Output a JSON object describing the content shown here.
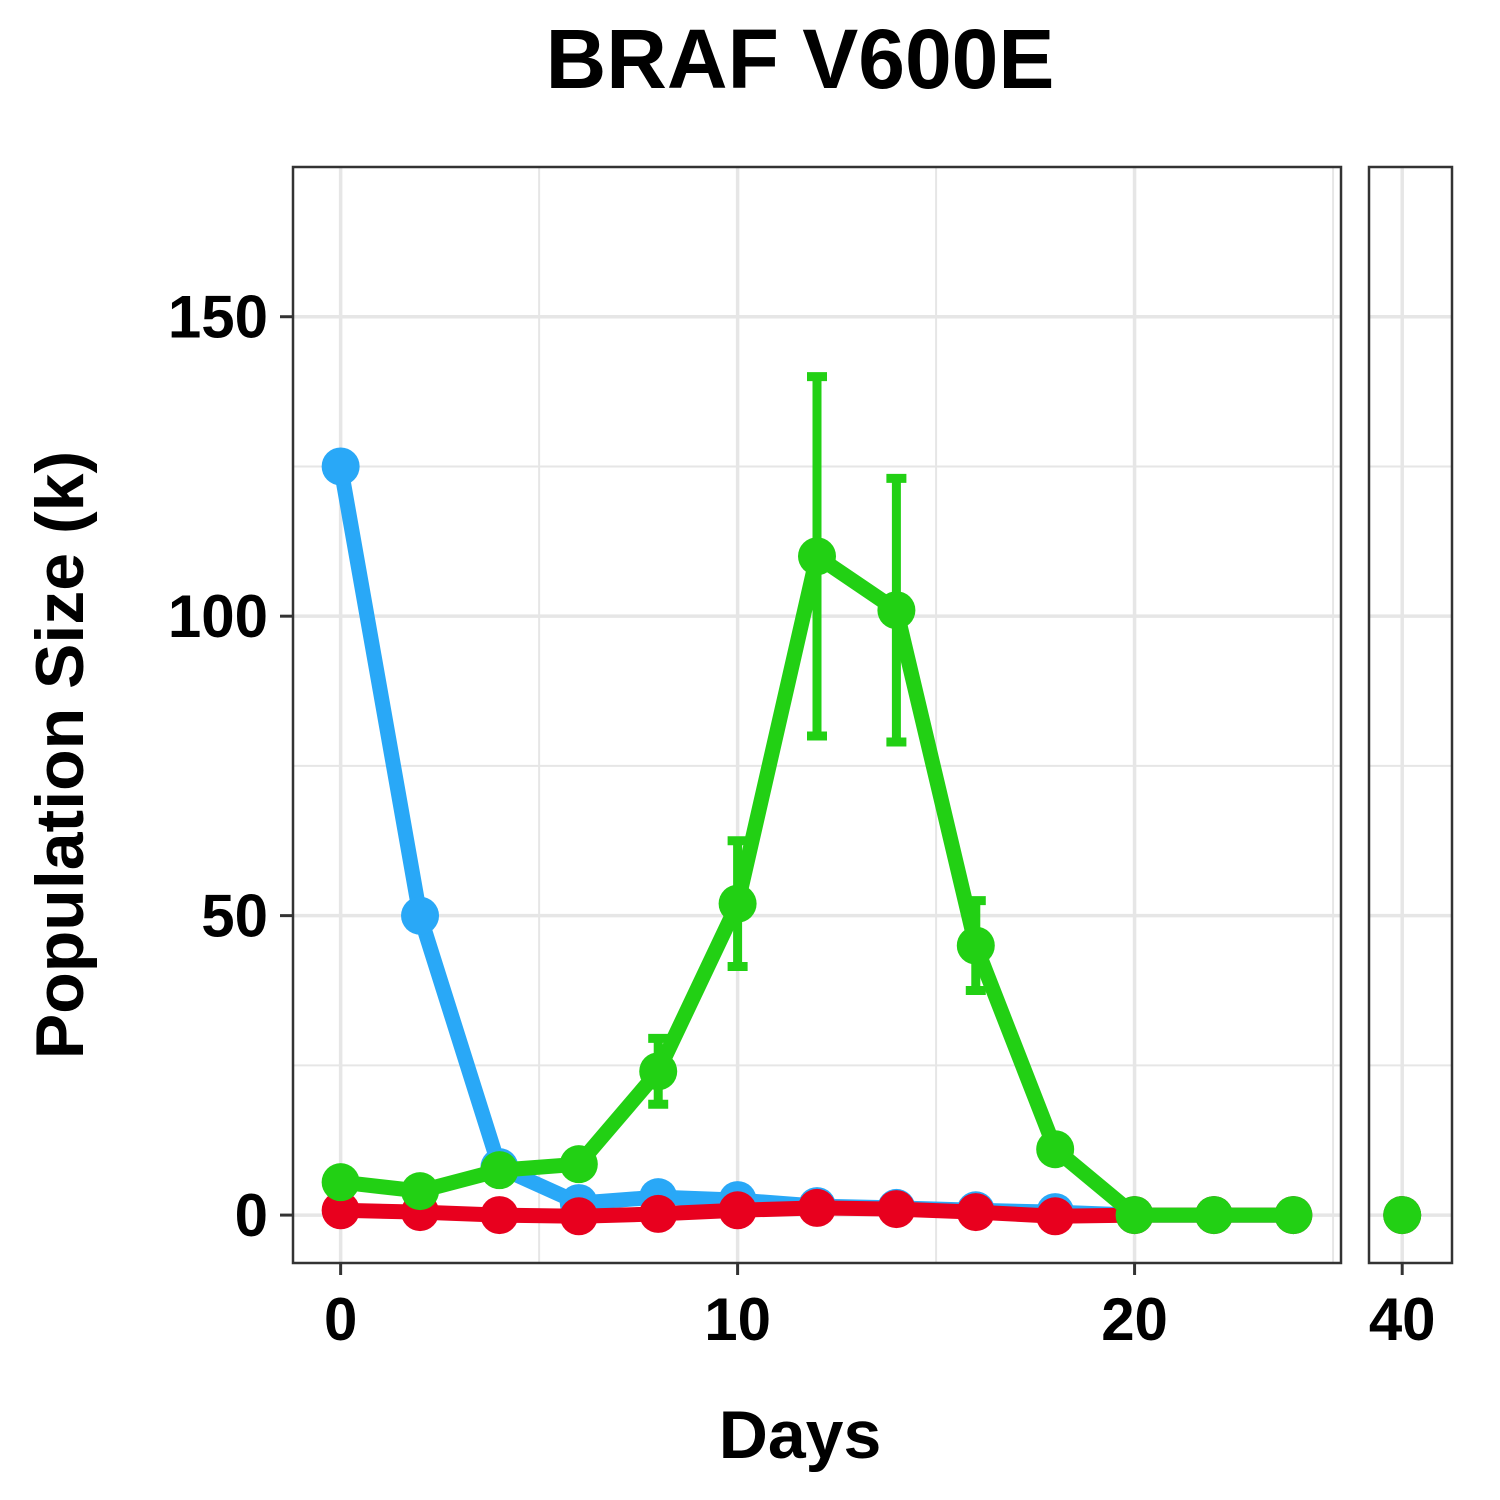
{
  "chart_data": {
    "type": "line",
    "title": "BRAF V600E",
    "xlabel": "Days",
    "ylabel": "Population Size (k)",
    "x_ticks": [
      0,
      10,
      20,
      40
    ],
    "y_ticks": [
      0,
      50,
      100,
      150
    ],
    "ylim": [
      -8,
      175
    ],
    "x_panels": [
      {
        "xlim": [
          -1.2,
          25.2
        ]
      },
      {
        "xlim": [
          38.6,
          42.1
        ]
      }
    ],
    "grid": true,
    "series": [
      {
        "color": "#29a8f7",
        "points": [
          [
            0,
            125
          ],
          [
            2,
            50
          ],
          [
            4,
            8
          ],
          [
            6,
            2
          ],
          [
            8,
            3
          ],
          [
            10,
            2.5
          ],
          [
            12,
            1.5
          ],
          [
            14,
            1.2
          ],
          [
            16,
            0.8
          ],
          [
            18,
            0.5
          ],
          [
            20,
            0
          ],
          [
            22,
            0
          ],
          [
            24,
            0
          ],
          [
            40,
            0
          ]
        ]
      },
      {
        "color": "#e8001e",
        "points": [
          [
            0,
            0.8
          ],
          [
            2,
            0.5
          ],
          [
            4,
            0
          ],
          [
            6,
            -0.2
          ],
          [
            8,
            0.2
          ],
          [
            10,
            0.8
          ],
          [
            12,
            1.2
          ],
          [
            14,
            1
          ],
          [
            16,
            0.5
          ],
          [
            18,
            -0.2
          ],
          [
            20,
            0
          ],
          [
            22,
            0
          ],
          [
            24,
            0
          ],
          [
            40,
            0
          ]
        ]
      },
      {
        "color": "#22d014",
        "points": [
          [
            0,
            5.5
          ],
          [
            2,
            4
          ],
          [
            4,
            7.5
          ],
          [
            6,
            8.5
          ],
          [
            8,
            24
          ],
          [
            10,
            52
          ],
          [
            12,
            110
          ],
          [
            14,
            101
          ],
          [
            16,
            45
          ],
          [
            18,
            11
          ],
          [
            20,
            0
          ],
          [
            22,
            0
          ],
          [
            24,
            0
          ],
          [
            40,
            0
          ]
        ],
        "errors": [
          [
            0,
            0
          ],
          [
            0,
            0
          ],
          [
            0,
            0
          ],
          [
            0,
            0
          ],
          [
            5.5,
            5.5
          ],
          [
            10.5,
            10.5
          ],
          [
            30,
            30
          ],
          [
            22,
            22
          ],
          [
            7.5,
            7.5
          ],
          [
            0,
            0
          ],
          [
            0,
            0
          ],
          [
            0,
            0
          ],
          [
            0,
            0
          ],
          [
            0,
            0
          ]
        ]
      }
    ]
  }
}
